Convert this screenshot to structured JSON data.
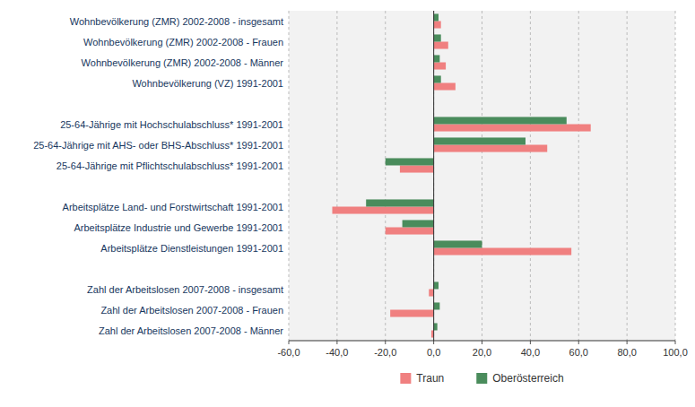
{
  "chart_data": {
    "type": "bar",
    "orientation": "horizontal",
    "categories": [
      "Wohnbevölkerung (ZMR) 2002-2008 - insgesamt",
      "Wohnbevölkerung (ZMR) 2002-2008 - Frauen",
      "Wohnbevölkerung (ZMR) 2002-2008 - Männer",
      "Wohnbevölkerung (VZ) 1991-2001",
      null,
      "25-64-Jährige mit Hochschulabschluss* 1991-2001",
      "25-64-Jährige mit AHS- oder BHS-Abschluss* 1991-2001",
      "25-64-Jährige mit Pflichtschulabschluss* 1991-2001",
      null,
      "Arbeitsplätze Land- und Forstwirtschaft 1991-2001",
      "Arbeitsplätze Industrie und Gewerbe 1991-2001",
      "Arbeitsplätze Dienstleistungen 1991-2001",
      null,
      "Zahl der Arbeitslosen 2007-2008 - insgesamt",
      "Zahl der Arbeitslosen 2007-2008 - Frauen",
      "Zahl der Arbeitslosen 2007-2008 - Männer"
    ],
    "series": [
      {
        "name": "Traun",
        "color": "#F08080",
        "values": [
          3.0,
          6.0,
          5.0,
          9.0,
          0,
          65.0,
          47.0,
          -14.0,
          0,
          -42.0,
          -20.0,
          57.0,
          0,
          -2.0,
          -18.0,
          -1.0
        ]
      },
      {
        "name": "Oberösterreich",
        "color": "#4A8C5C",
        "values": [
          2.0,
          3.0,
          2.5,
          3.0,
          0,
          55.0,
          38.0,
          -20.0,
          0,
          -28.0,
          -13.0,
          20.0,
          0,
          2.0,
          2.5,
          1.5
        ]
      }
    ],
    "xlim": [
      -60,
      100
    ],
    "xticks": [
      {
        "value": -60,
        "label": "-60,0"
      },
      {
        "value": -40,
        "label": "-40,0"
      },
      {
        "value": -20,
        "label": "-20,0"
      },
      {
        "value": 0,
        "label": "0,0"
      },
      {
        "value": 20,
        "label": "20,0"
      },
      {
        "value": 40,
        "label": "40,0"
      },
      {
        "value": 60,
        "label": "60,0"
      },
      {
        "value": 80,
        "label": "80,0"
      },
      {
        "value": 100,
        "label": "100,0"
      }
    ],
    "grid": true,
    "legend": "bottom"
  }
}
